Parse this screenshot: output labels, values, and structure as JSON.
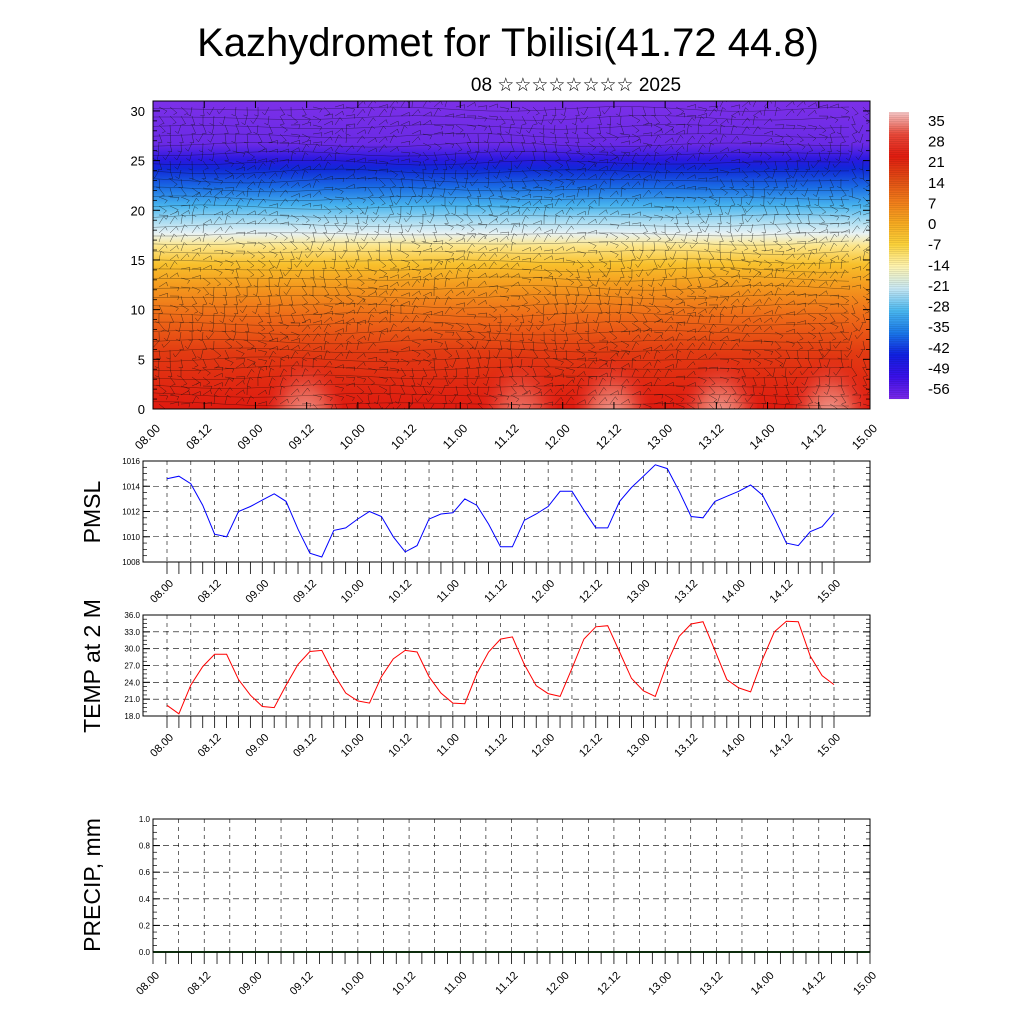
{
  "title": "Kazhydromet for Tbilisi(41.72 44.8)",
  "subtitle": "08 ☆☆☆☆☆☆☆☆ 2025",
  "chart_data": [
    {
      "id": "profile",
      "type": "heatmap",
      "x_tick_labels": [
        "08.00",
        "08.12",
        "09.00",
        "09.12",
        "10.00",
        "10.12",
        "11.00",
        "11.12",
        "12.00",
        "12.12",
        "13.00",
        "13.12",
        "14.00",
        "14.12",
        "15.00"
      ],
      "y_tick_labels": [
        "0",
        "5",
        "10",
        "15",
        "20",
        "25",
        "30"
      ],
      "ylim": [
        0,
        31
      ],
      "colorbar_labels": [
        "35",
        "28",
        "21",
        "14",
        "7",
        "0",
        "-7",
        "-14",
        "-21",
        "-28",
        "-35",
        "-42",
        "-49",
        "-56"
      ],
      "colorbar_stops": [
        "#f6c8c8",
        "#e84a3a",
        "#e01c10",
        "#e04a14",
        "#f07a1a",
        "#f6a820",
        "#fbd23a",
        "#fff4b0",
        "#c8e8f4",
        "#4ab8f0",
        "#1a78e8",
        "#1020e0",
        "#3a10e8",
        "#7a28e8"
      ],
      "grid": true
    },
    {
      "id": "pmsl",
      "type": "line",
      "ylabel": "PMSL",
      "ylim": [
        1008,
        1016
      ],
      "y_tick_labels": [
        "1008",
        "1010",
        "1012",
        "1014",
        "1016"
      ],
      "x_tick_labels": [
        "08.00",
        "08.12",
        "09.00",
        "09.12",
        "10.00",
        "10.12",
        "11.00",
        "11.12",
        "12.00",
        "12.12",
        "13.00",
        "13.12",
        "14.00",
        "14.12",
        "15.00"
      ],
      "series": [
        {
          "color": "#0000ff",
          "values": [
            1014.6,
            1014.8,
            1014.2,
            1012.5,
            1010.2,
            1010.0,
            1012.0,
            1012.4,
            1012.9,
            1013.4,
            1012.8,
            1010.6,
            1008.7,
            1008.4,
            1010.5,
            1010.7,
            1011.4,
            1012.0,
            1011.6,
            1010.0,
            1008.8,
            1009.3,
            1011.4,
            1011.8,
            1011.9,
            1013.0,
            1012.5,
            1011.0,
            1009.2,
            1009.2,
            1011.3,
            1011.8,
            1012.4,
            1013.6,
            1013.6,
            1012.1,
            1010.7,
            1010.7,
            1012.8,
            1013.9,
            1014.8,
            1015.7,
            1015.4,
            1013.6,
            1011.6,
            1011.5,
            1012.8,
            1013.2,
            1013.6,
            1014.1,
            1013.3,
            1011.5,
            1009.5,
            1009.3,
            1010.4,
            1010.8,
            1011.9
          ]
        }
      ],
      "grid": true
    },
    {
      "id": "temp",
      "type": "line",
      "ylabel": "TEMP at 2 M",
      "ylim": [
        18.0,
        36.0
      ],
      "y_tick_labels": [
        "18.0",
        "21.0",
        "24.0",
        "27.0",
        "30.0",
        "33.0",
        "36.0"
      ],
      "x_tick_labels": [
        "08.00",
        "08.12",
        "09.00",
        "09.12",
        "10.00",
        "10.12",
        "11.00",
        "11.12",
        "12.00",
        "12.12",
        "13.00",
        "13.12",
        "14.00",
        "14.12",
        "15.00"
      ],
      "series": [
        {
          "color": "#ff0000",
          "values": [
            19.9,
            18.4,
            23.5,
            26.8,
            29.0,
            29.0,
            24.5,
            21.7,
            19.7,
            19.5,
            23.5,
            27.2,
            29.5,
            29.7,
            25.5,
            22.1,
            20.7,
            20.3,
            25.0,
            28.2,
            29.7,
            29.4,
            25.0,
            22.1,
            20.3,
            20.2,
            25.5,
            29.4,
            31.7,
            32.1,
            27.2,
            23.4,
            22.0,
            21.5,
            26.5,
            31.7,
            33.9,
            34.1,
            29.4,
            24.7,
            22.5,
            21.5,
            27.5,
            32.2,
            34.4,
            34.8,
            29.7,
            24.5,
            23.0,
            22.3,
            28.1,
            33.0,
            34.9,
            34.8,
            28.7,
            25.2,
            23.6
          ]
        }
      ],
      "grid": true
    },
    {
      "id": "precip",
      "type": "bar",
      "ylabel": "PRECIP, mm",
      "ylim": [
        0.0,
        1.0
      ],
      "y_tick_labels": [
        "0.0",
        "0.2",
        "0.4",
        "0.6",
        "0.8",
        "1.0"
      ],
      "x_tick_labels": [
        "08.00",
        "08.12",
        "09.00",
        "09.12",
        "10.00",
        "10.12",
        "11.00",
        "11.12",
        "12.00",
        "12.12",
        "13.00",
        "13.12",
        "14.00",
        "14.12",
        "15.00"
      ],
      "values": [
        0,
        0,
        0,
        0,
        0,
        0,
        0,
        0,
        0,
        0,
        0,
        0,
        0,
        0,
        0,
        0,
        0,
        0,
        0,
        0,
        0,
        0,
        0,
        0,
        0,
        0,
        0,
        0,
        0,
        0,
        0,
        0,
        0,
        0,
        0,
        0,
        0,
        0,
        0,
        0,
        0,
        0,
        0,
        0,
        0,
        0,
        0,
        0,
        0,
        0,
        0,
        0,
        0,
        0,
        0,
        0,
        0
      ],
      "grid": true
    }
  ]
}
